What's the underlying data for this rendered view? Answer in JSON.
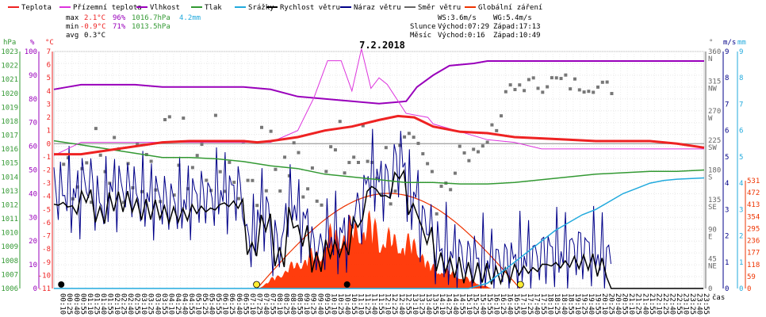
{
  "chart_data": {
    "type": "line",
    "title": "7.2.2018",
    "xlabel": "čas",
    "legend": [
      {
        "name": "Teplota",
        "color": "#ee2222"
      },
      {
        "name": "Přízemní teplota",
        "color": "#dd33dd"
      },
      {
        "name": "Vlhkost",
        "color": "#9900bb"
      },
      {
        "name": "Tlak",
        "color": "#339933"
      },
      {
        "name": "Srážky",
        "color": "#22aadd"
      },
      {
        "name": "Rychlost větru",
        "color": "#000000"
      },
      {
        "name": "Náraz větru",
        "color": "#000088"
      },
      {
        "name": "Směr větru",
        "color": "#666666"
      },
      {
        "name": "Globální záření",
        "color": "#ee3300"
      }
    ],
    "stats": {
      "max": {
        "label": "max",
        "temp": "2.1°C",
        "hum": "96%",
        "press": "1016.7hPa",
        "rain": "4.2mm"
      },
      "min": {
        "label": "min",
        "temp": "-0.9°C",
        "hum": "71%",
        "press": "1013.5hPa"
      },
      "avg": {
        "label": "avg",
        "temp": "0.3°C"
      }
    },
    "wind": {
      "ws": "WS:3.6m/s",
      "wg": "WG:5.4m/s"
    },
    "sun": {
      "label": "Slunce",
      "rise": "Východ:07:29",
      "set": "Západ:17:13"
    },
    "moon": {
      "label": "Měsíc",
      "rise": "Východ:0:16",
      "set": "Západ:10:49"
    },
    "axes": {
      "hpa": {
        "unit": "hPa",
        "ticks": [
          "1023",
          "1022",
          "1021",
          "1020",
          "1019",
          "1018",
          "1017",
          "1016",
          "1015",
          "1014",
          "1013",
          "1012",
          "1011",
          "1010",
          "1009",
          "1008",
          "1007",
          "1006"
        ]
      },
      "pct": {
        "unit": "%",
        "ticks": [
          "100",
          "90",
          "80",
          "70",
          "60",
          "50",
          "40",
          "30",
          "20",
          "10",
          "0"
        ]
      },
      "temp": {
        "unit": "°C",
        "ticks": [
          "7",
          "6",
          "5",
          "4",
          "3",
          "2",
          "1",
          "0",
          "-1",
          "-2",
          "-3",
          "-4",
          "-5",
          "-6",
          "-7",
          "-8",
          "-9",
          "-10",
          "-11"
        ]
      },
      "deg": {
        "unit": "°",
        "ticks": [
          [
            "360",
            "N"
          ],
          [
            "315",
            "NW"
          ],
          [
            "270",
            "W"
          ],
          [
            "225",
            "SW"
          ],
          [
            "180",
            "S"
          ],
          [
            "135",
            "SE"
          ],
          [
            "90",
            "E"
          ],
          [
            "45",
            "NE"
          ],
          [
            "0",
            ""
          ]
        ]
      },
      "ms": {
        "unit": "m/s",
        "ticks": [
          "9",
          "8",
          "7",
          "6",
          "5",
          "4",
          "3",
          "2",
          "1",
          "0"
        ]
      },
      "mm": {
        "unit": "mm",
        "ticks": [
          "9",
          "8",
          "7",
          "6",
          "5",
          "4",
          "3",
          "2",
          "1",
          "0"
        ]
      },
      "wm2": {
        "ticks": [
          "531",
          "472",
          "413",
          "354",
          "295",
          "236",
          "177",
          "118",
          "59",
          "0"
        ]
      }
    },
    "x_ticks": [
      "00:10",
      "00:25",
      "00:40",
      "00:55",
      "01:10",
      "01:25",
      "01:40",
      "01:55",
      "02:10",
      "02:25",
      "02:40",
      "02:55",
      "03:10",
      "03:25",
      "03:40",
      "03:55",
      "04:10",
      "04:25",
      "04:40",
      "04:55",
      "05:10",
      "05:25",
      "05:40",
      "05:55",
      "06:10",
      "06:25",
      "06:40",
      "06:55",
      "07:10",
      "07:25",
      "07:40",
      "07:55",
      "08:10",
      "08:25",
      "08:40",
      "08:55",
      "09:10",
      "09:25",
      "09:40",
      "09:55",
      "10:10",
      "10:25",
      "10:40",
      "10:55",
      "11:10",
      "11:25",
      "11:40",
      "11:55",
      "12:10",
      "12:25",
      "12:40",
      "12:55",
      "13:10",
      "13:25",
      "13:40",
      "13:55",
      "14:10",
      "14:25",
      "14:40",
      "14:55",
      "15:10",
      "15:25",
      "15:40",
      "15:55",
      "16:10",
      "16:25",
      "16:40",
      "16:55",
      "17:10",
      "17:25",
      "17:40",
      "17:55",
      "18:10",
      "18:25",
      "18:40",
      "18:55",
      "19:10",
      "19:25",
      "19:40",
      "19:55",
      "20:10",
      "20:25",
      "20:40",
      "20:55",
      "21:10",
      "21:25",
      "21:40",
      "21:55",
      "22:10",
      "22:25",
      "22:40",
      "22:55",
      "23:10",
      "23:25",
      "23:40",
      "23:55"
    ],
    "series": {
      "teplota": [
        [
          0,
          -0.8
        ],
        [
          1,
          -0.8
        ],
        [
          2,
          -0.5
        ],
        [
          3,
          -0.2
        ],
        [
          4,
          0.1
        ],
        [
          5,
          0.2
        ],
        [
          6,
          0.2
        ],
        [
          7,
          0.2
        ],
        [
          7.5,
          0.1
        ],
        [
          8,
          0.2
        ],
        [
          9,
          0.5
        ],
        [
          10,
          1.0
        ],
        [
          11,
          1.3
        ],
        [
          12,
          1.8
        ],
        [
          12.7,
          2.1
        ],
        [
          13.3,
          2.0
        ],
        [
          14,
          1.3
        ],
        [
          15,
          0.9
        ],
        [
          16,
          0.8
        ],
        [
          17,
          0.5
        ],
        [
          18,
          0.4
        ],
        [
          19,
          0.3
        ],
        [
          20,
          0.2
        ],
        [
          21,
          0.2
        ],
        [
          22,
          0.2
        ],
        [
          23,
          0.0
        ],
        [
          24,
          -0.3
        ]
      ],
      "prizemni": [
        [
          0,
          -0.9
        ],
        [
          1,
          0.1
        ],
        [
          2,
          0.1
        ],
        [
          3,
          0.1
        ],
        [
          4,
          0.1
        ],
        [
          5,
          0.1
        ],
        [
          6,
          0.1
        ],
        [
          7,
          0.1
        ],
        [
          8,
          0.1
        ],
        [
          9,
          1.0
        ],
        [
          9.6,
          3.5
        ],
        [
          10.1,
          6.3
        ],
        [
          10.6,
          6.3
        ],
        [
          11.0,
          4.0
        ],
        [
          11.35,
          7.2
        ],
        [
          11.7,
          4.2
        ],
        [
          12,
          5.0
        ],
        [
          12.3,
          4.5
        ],
        [
          13,
          2.3
        ],
        [
          13.8,
          2.0
        ],
        [
          14,
          1.5
        ],
        [
          15,
          0.9
        ],
        [
          16,
          0.3
        ],
        [
          17,
          0.1
        ],
        [
          18,
          -0.4
        ],
        [
          24,
          -0.4
        ]
      ],
      "vlhkost": [
        [
          0,
          84
        ],
        [
          0.5,
          85
        ],
        [
          1,
          86
        ],
        [
          2,
          86
        ],
        [
          3,
          86
        ],
        [
          4,
          85
        ],
        [
          5,
          85
        ],
        [
          6,
          85
        ],
        [
          7,
          85
        ],
        [
          8,
          84
        ],
        [
          9,
          81
        ],
        [
          10,
          80
        ],
        [
          11,
          79
        ],
        [
          12,
          78
        ],
        [
          13,
          79
        ],
        [
          13.4,
          85
        ],
        [
          14,
          90
        ],
        [
          14.6,
          94
        ],
        [
          15.5,
          95
        ],
        [
          16,
          96
        ],
        [
          24,
          96
        ],
        [
          24,
          96
        ]
      ],
      "tlak": [
        [
          0,
          1016.6
        ],
        [
          1,
          1016.3
        ],
        [
          2,
          1016.0
        ],
        [
          3,
          1015.7
        ],
        [
          4,
          1015.4
        ],
        [
          5,
          1015.4
        ],
        [
          6,
          1015.3
        ],
        [
          7,
          1015.1
        ],
        [
          8,
          1014.8
        ],
        [
          9,
          1014.6
        ],
        [
          10,
          1014.2
        ],
        [
          11,
          1014.0
        ],
        [
          12,
          1013.8
        ],
        [
          13,
          1013.6
        ],
        [
          14,
          1013.6
        ],
        [
          15,
          1013.5
        ],
        [
          16,
          1013.5
        ],
        [
          17,
          1013.6
        ],
        [
          18,
          1013.8
        ],
        [
          19,
          1014.0
        ],
        [
          20,
          1014.2
        ],
        [
          21,
          1014.3
        ],
        [
          22,
          1014.4
        ],
        [
          23,
          1014.4
        ],
        [
          24,
          1014.5
        ]
      ],
      "srazky": [
        [
          0,
          0
        ],
        [
          15.3,
          0
        ],
        [
          16,
          0.2
        ],
        [
          16.5,
          0.6
        ],
        [
          17,
          1.0
        ],
        [
          17.5,
          1.4
        ],
        [
          18,
          1.8
        ],
        [
          18.5,
          2.2
        ],
        [
          19,
          2.5
        ],
        [
          19.5,
          2.8
        ],
        [
          20,
          3.0
        ],
        [
          20.5,
          3.3
        ],
        [
          21,
          3.6
        ],
        [
          21.5,
          3.8
        ],
        [
          22,
          4.0
        ],
        [
          22.5,
          4.1
        ],
        [
          23,
          4.15
        ],
        [
          24,
          4.2
        ]
      ],
      "rychlost": [
        [
          0,
          3.2
        ],
        [
          0.6,
          3.0
        ],
        [
          1,
          3.5
        ],
        [
          1.5,
          2.8
        ],
        [
          2,
          3.3
        ],
        [
          3,
          3.0
        ],
        [
          4,
          2.8
        ],
        [
          5,
          3.0
        ],
        [
          6,
          3.2
        ],
        [
          7,
          1.5
        ],
        [
          7.5,
          2.5
        ],
        [
          8,
          1.2
        ],
        [
          8.5,
          2.7
        ],
        [
          9,
          2.0
        ],
        [
          9.5,
          1.0
        ],
        [
          10,
          1.5
        ],
        [
          11,
          2.5
        ],
        [
          11.5,
          3.8
        ],
        [
          12,
          3.5
        ],
        [
          12.5,
          4.3
        ],
        [
          13,
          3.0
        ],
        [
          13.5,
          2.0
        ],
        [
          14,
          1.0
        ],
        [
          14.5,
          0.8
        ],
        [
          15,
          0.6
        ],
        [
          16,
          0.5
        ],
        [
          17,
          0.7
        ],
        [
          18,
          0.9
        ],
        [
          19,
          1.0
        ],
        [
          20,
          0.8
        ],
        [
          20.5,
          0.1
        ],
        [
          21,
          0
        ],
        [
          24,
          0
        ]
      ],
      "smer": [
        [
          0,
          190
        ],
        [
          3,
          195
        ],
        [
          6,
          185
        ],
        [
          9,
          190
        ],
        [
          10.5,
          200
        ],
        [
          12,
          180
        ],
        [
          13,
          170
        ],
        [
          13.5,
          170
        ],
        [
          14,
          180
        ],
        [
          14.5,
          190
        ],
        [
          15,
          200
        ],
        [
          15.5,
          220
        ],
        [
          16,
          250
        ],
        [
          16.5,
          300
        ],
        [
          17,
          310
        ],
        [
          18,
          315
        ],
        [
          19,
          310
        ],
        [
          20,
          305
        ],
        [
          24,
          305
        ]
      ]
    }
  }
}
